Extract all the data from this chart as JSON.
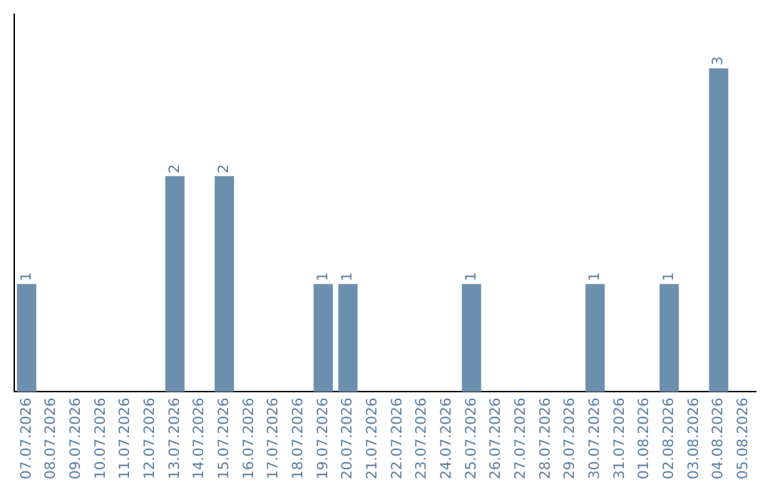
{
  "chart_data": {
    "type": "bar",
    "categories": [
      "07.07.2026",
      "08.07.2026",
      "09.07.2026",
      "10.07.2026",
      "11.07.2026",
      "12.07.2026",
      "13.07.2026",
      "14.07.2026",
      "15.07.2026",
      "16.07.2026",
      "17.07.2026",
      "18.07.2026",
      "19.07.2026",
      "20.07.2026",
      "21.07.2026",
      "22.07.2026",
      "23.07.2026",
      "24.07.2026",
      "25.07.2026",
      "26.07.2026",
      "27.07.2026",
      "28.07.2026",
      "29.07.2026",
      "30.07.2026",
      "31.07.2026",
      "01.08.2026",
      "02.08.2026",
      "03.08.2026",
      "04.08.2026",
      "05.08.2026"
    ],
    "values": [
      1,
      0,
      0,
      0,
      0,
      0,
      2,
      0,
      2,
      0,
      0,
      0,
      1,
      1,
      0,
      0,
      0,
      0,
      1,
      0,
      0,
      0,
      0,
      1,
      0,
      0,
      1,
      0,
      3,
      0
    ],
    "color": "#6d8fae",
    "value_labels": [
      "1",
      null,
      null,
      null,
      null,
      null,
      "2",
      null,
      "2",
      null,
      null,
      null,
      "1",
      "1",
      null,
      null,
      null,
      null,
      "1",
      null,
      null,
      null,
      null,
      "1",
      null,
      null,
      "1",
      null,
      "3",
      null
    ],
    "grid": false,
    "legend": false,
    "tick_labels": "x"
  }
}
